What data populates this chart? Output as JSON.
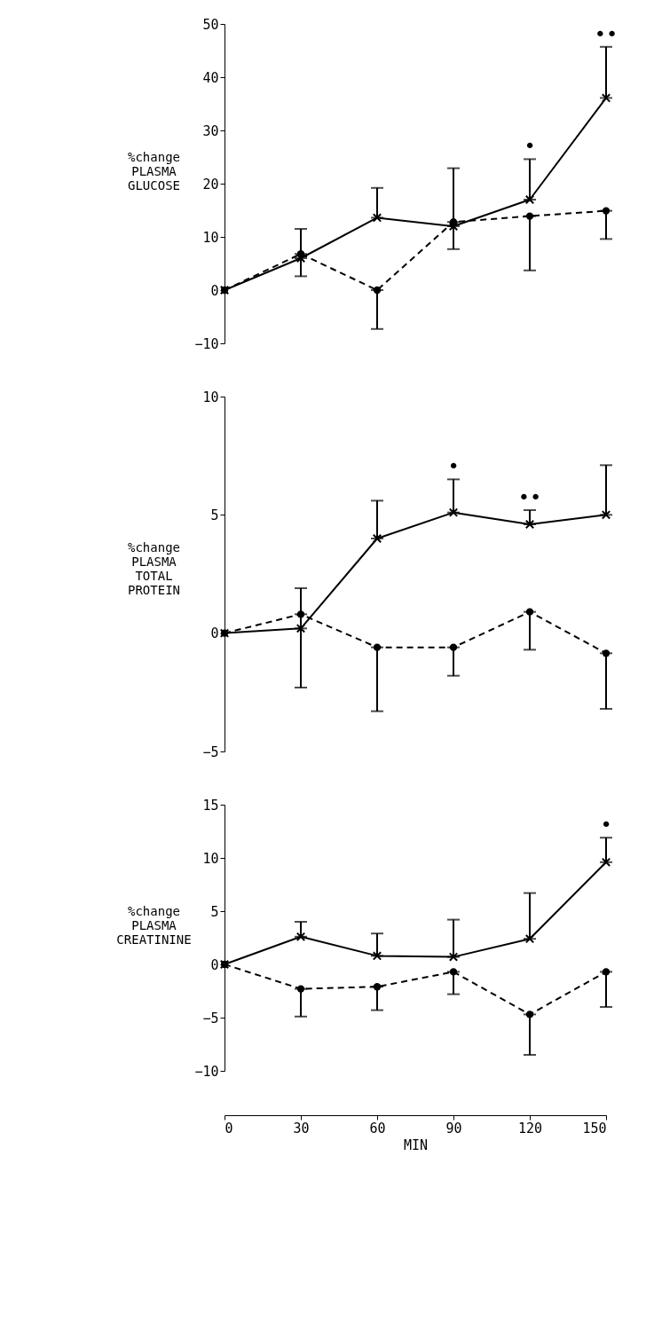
{
  "chart_data": [
    {
      "type": "line",
      "ylabel": "%change\nPLASMA\nGLUCOSE",
      "x": [
        0,
        30,
        60,
        90,
        120,
        150
      ],
      "xlim": [
        0,
        150
      ],
      "xticks": [
        0,
        30,
        60,
        90,
        120,
        150
      ],
      "ylim": [
        -10,
        50
      ],
      "yticks": [
        -10,
        0,
        10,
        20,
        30,
        40,
        50
      ],
      "tick_labels": "y",
      "series": [
        {
          "color": "#000000",
          "marker": "cross",
          "line_style": "solid",
          "values": [
            0,
            6.0,
            13.6,
            12.0,
            17.0,
            36.1
          ],
          "errors": [
            null,
            [
              6.0,
              11.5
            ],
            [
              13.6,
              19.2
            ],
            [
              12.0,
              22.9
            ],
            [
              17.0,
              24.6
            ],
            [
              36.1,
              45.7
            ]
          ]
        },
        {
          "color": "#000000",
          "marker": "circle",
          "line_style": "dashed",
          "values": [
            0,
            6.8,
            0,
            12.8,
            13.9,
            14.9
          ],
          "errors": [
            null,
            [
              2.6,
              6.8
            ],
            [
              -7.3,
              0
            ],
            [
              7.7,
              12.8
            ],
            [
              3.7,
              13.9
            ],
            [
              9.6,
              14.9
            ]
          ]
        }
      ],
      "annotations": [
        {
          "text": "•",
          "x": 120,
          "y": 24.6
        },
        {
          "text": "••",
          "x": 150,
          "y": 45.7
        }
      ]
    },
    {
      "type": "line",
      "ylabel": "%change\nPLASMA\nTOTAL\nPROTEIN",
      "x": [
        0,
        30,
        60,
        90,
        120,
        150
      ],
      "xlim": [
        0,
        150
      ],
      "xticks": [
        0,
        30,
        60,
        90,
        120,
        150
      ],
      "ylim": [
        -5,
        10
      ],
      "yticks": [
        -5,
        0,
        5,
        10
      ],
      "tick_labels": "y",
      "series": [
        {
          "color": "#000000",
          "marker": "cross",
          "line_style": "solid",
          "values": [
            0,
            0.2,
            4.0,
            5.1,
            4.6,
            5.0
          ],
          "errors": [
            null,
            [
              0.2,
              1.9
            ],
            [
              4.0,
              5.6
            ],
            [
              5.1,
              6.5
            ],
            [
              4.6,
              5.2
            ],
            [
              5.0,
              7.1
            ]
          ]
        },
        {
          "color": "#000000",
          "marker": "circle",
          "line_style": "dashed",
          "values": [
            0,
            0.8,
            -0.6,
            -0.6,
            0.9,
            -0.85
          ],
          "errors": [
            null,
            [
              -2.3,
              0.8
            ],
            [
              -3.3,
              -0.6
            ],
            [
              -1.8,
              -0.6
            ],
            [
              -0.7,
              0.9
            ],
            [
              -3.2,
              -0.85
            ]
          ]
        }
      ],
      "annotations": [
        {
          "text": "•",
          "x": 90,
          "y": 6.5
        },
        {
          "text": "••",
          "x": 120,
          "y": 5.2
        }
      ]
    },
    {
      "type": "line",
      "ylabel": "%change\nPLASMA\nCREATININE",
      "xlabel": "MIN",
      "x": [
        0,
        30,
        60,
        90,
        120,
        150
      ],
      "xlim": [
        0,
        150
      ],
      "xticks": [
        0,
        30,
        60,
        90,
        120,
        150
      ],
      "ylim": [
        -10,
        15
      ],
      "yticks": [
        -10,
        -5,
        0,
        5,
        10,
        15
      ],
      "series": [
        {
          "color": "#000000",
          "marker": "cross",
          "line_style": "solid",
          "values": [
            0,
            2.6,
            0.8,
            0.7,
            2.4,
            9.6
          ],
          "errors": [
            null,
            [
              2.6,
              4.0
            ],
            [
              0.8,
              2.9
            ],
            [
              0.7,
              4.2
            ],
            [
              2.4,
              6.7
            ],
            [
              9.6,
              11.9
            ]
          ]
        },
        {
          "color": "#000000",
          "marker": "circle",
          "line_style": "dashed",
          "values": [
            0,
            -2.3,
            -2.1,
            -0.7,
            -4.7,
            -0.7
          ],
          "errors": [
            null,
            [
              -4.9,
              -2.3
            ],
            [
              -4.3,
              -2.1
            ],
            [
              -2.8,
              -0.7
            ],
            [
              -8.5,
              -4.7
            ],
            [
              -4.0,
              -0.7
            ]
          ]
        }
      ],
      "annotations": [
        {
          "text": "•",
          "x": 150,
          "y": 11.9
        }
      ]
    }
  ]
}
